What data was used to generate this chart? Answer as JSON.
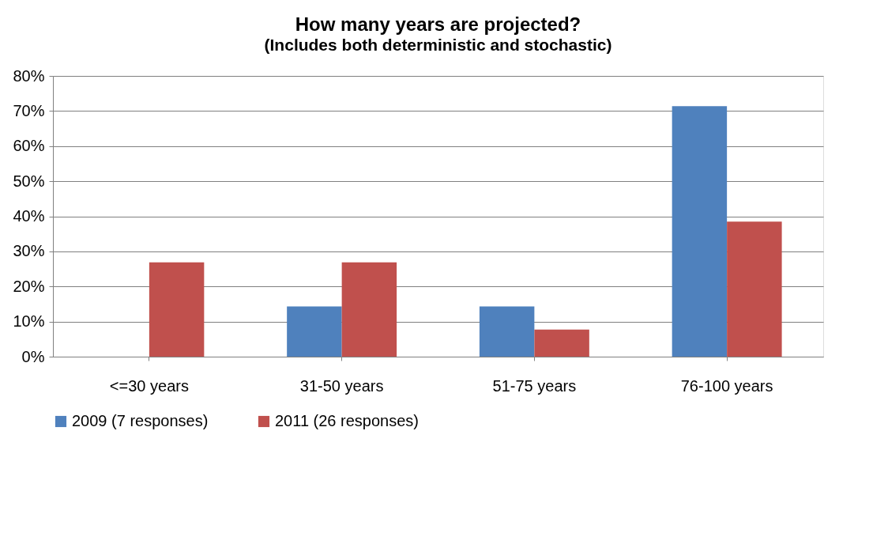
{
  "chart_data": {
    "type": "bar",
    "title": "How many years are projected?",
    "subtitle": "(Includes both deterministic and stochastic)",
    "categories": [
      "<=30 years",
      "31-50 years",
      "51-75 years",
      "76-100 years"
    ],
    "series": [
      {
        "name": "2009 (7 responses)",
        "color": "#4f81bd",
        "values": [
          0,
          14.3,
          14.3,
          71.4
        ]
      },
      {
        "name": "2011 (26 responses)",
        "color": "#c0504d",
        "values": [
          26.9,
          26.9,
          7.7,
          38.5
        ]
      }
    ],
    "ylim": [
      0,
      80
    ],
    "yticks": [
      {
        "value": 0,
        "label": "0%"
      },
      {
        "value": 10,
        "label": "10%"
      },
      {
        "value": 20,
        "label": "20%"
      },
      {
        "value": 30,
        "label": "30%"
      },
      {
        "value": 40,
        "label": "40%"
      },
      {
        "value": 50,
        "label": "50%"
      },
      {
        "value": 60,
        "label": "60%"
      },
      {
        "value": 70,
        "label": "70%"
      },
      {
        "value": 80,
        "label": "80%"
      }
    ],
    "grid": "y",
    "legend": "bottom"
  }
}
